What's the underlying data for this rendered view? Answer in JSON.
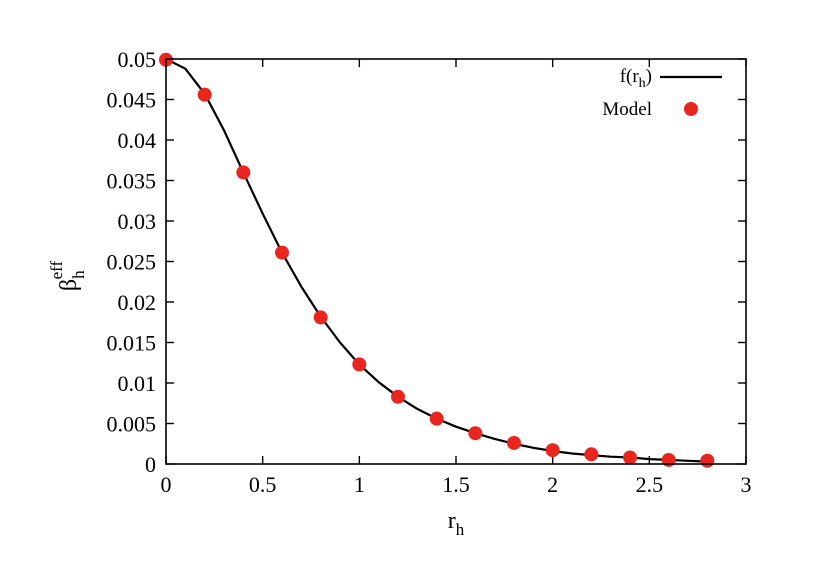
{
  "chart_data": {
    "type": "scatter",
    "xlabel": {
      "base": "r",
      "sub": "h"
    },
    "ylabel": {
      "base": "β",
      "sub": "h",
      "sup": "eff"
    },
    "xlim": [
      0,
      3
    ],
    "ylim": [
      0,
      0.05
    ],
    "x_ticks": [
      "0",
      "0.5",
      "1",
      "1.5",
      "2",
      "2.5",
      "3"
    ],
    "y_ticks": [
      "0",
      "0.005",
      "0.01",
      "0.015",
      "0.02",
      "0.025",
      "0.03",
      "0.035",
      "0.04",
      "0.045",
      "0.05"
    ],
    "legend_position": "top-right",
    "grid": false,
    "series": [
      {
        "name": "f(rh)",
        "legend_label": {
          "base": "f(r",
          "sub": "h",
          "tail": ")"
        },
        "kind": "line",
        "color": "#000000",
        "x": [
          0,
          0.1,
          0.2,
          0.3,
          0.4,
          0.5,
          0.6,
          0.7,
          0.8,
          0.9,
          1.0,
          1.1,
          1.2,
          1.3,
          1.4,
          1.5,
          1.6,
          1.7,
          1.8,
          1.9,
          2.0,
          2.1,
          2.2,
          2.3,
          2.4,
          2.5,
          2.6,
          2.7,
          2.8
        ],
        "y": [
          0.05,
          0.0488,
          0.0457,
          0.0412,
          0.036,
          0.0309,
          0.0261,
          0.0219,
          0.0182,
          0.015,
          0.0123,
          0.0101,
          0.0083,
          0.0068,
          0.0056,
          0.0046,
          0.0038,
          0.0031,
          0.0025,
          0.002,
          0.0016,
          0.0013,
          0.0011,
          0.0009,
          0.0008,
          0.0006,
          0.0005,
          0.0004,
          0.0003
        ]
      },
      {
        "name": "Model",
        "legend_label": {
          "base": "Model"
        },
        "kind": "points",
        "color": "#e8261e",
        "x": [
          0,
          0.2,
          0.4,
          0.6,
          0.8,
          1.0,
          1.2,
          1.4,
          1.6,
          1.8,
          2.0,
          2.2,
          2.4,
          2.6,
          2.8
        ],
        "y": [
          0.0499,
          0.0456,
          0.036,
          0.0261,
          0.0181,
          0.0123,
          0.0083,
          0.0056,
          0.0038,
          0.0026,
          0.0017,
          0.0012,
          0.0008,
          0.0005,
          0.0004
        ]
      }
    ]
  }
}
